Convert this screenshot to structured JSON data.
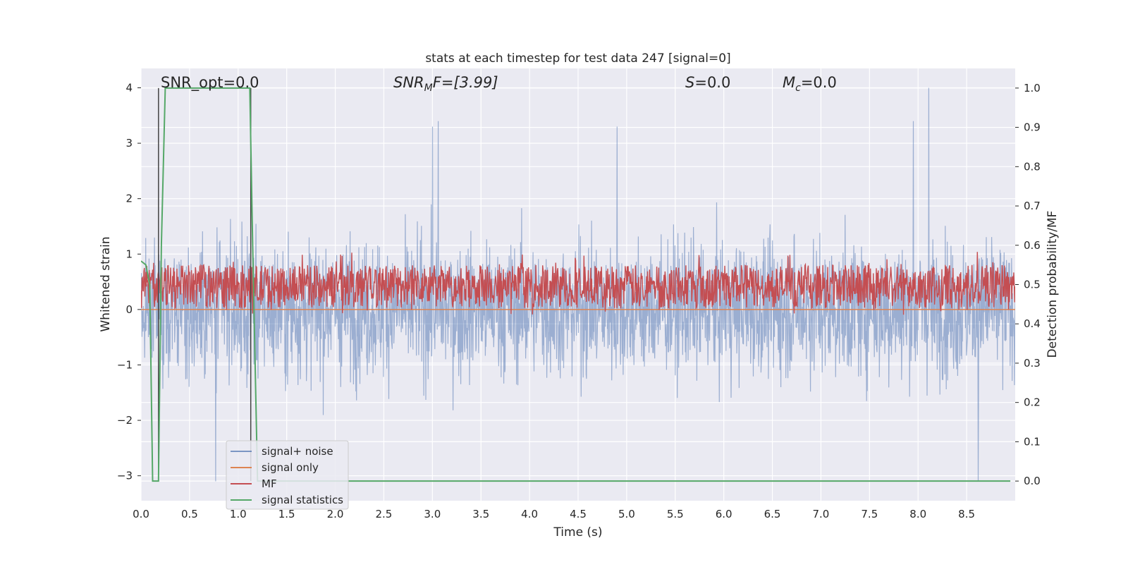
{
  "chart_data": {
    "type": "line",
    "title": "stats at each timestep for test data 247 [signal=0]",
    "xlabel": "Time (s)",
    "ylabel": "Whitened strain",
    "y2label": "Detection probability/MF",
    "xlim": [
      0.0,
      9.0
    ],
    "ylim": [
      -3.45,
      4.35
    ],
    "y2lim": [
      -0.05,
      1.05
    ],
    "xticks": [
      "0.0",
      "0.5",
      "1.0",
      "1.5",
      "2.0",
      "2.5",
      "3.0",
      "3.5",
      "4.0",
      "4.5",
      "5.0",
      "5.5",
      "6.0",
      "6.5",
      "7.0",
      "7.5",
      "8.0",
      "8.5"
    ],
    "yticks": [
      "4",
      "3",
      "2",
      "1",
      "0",
      "−1",
      "−2",
      "−3"
    ],
    "y2ticks": [
      "1.0",
      "0.9",
      "0.8",
      "0.7",
      "0.6",
      "0.5",
      "0.4",
      "0.3",
      "0.2",
      "0.1",
      "0.0"
    ],
    "grid": true,
    "legend_position": "lower-left",
    "annotations": {
      "snr_opt": "SNR_opt=0.0",
      "snr_mf_symbol": "SNR",
      "snr_mf_sub": "M",
      "snr_mf_rest": "F=[3.99]",
      "s_symbol": "S",
      "s_value": "=0.0",
      "mc_symbol": "M",
      "mc_sub": "c",
      "mc_value": "=0.0"
    },
    "vertical_markers_x": [
      0.18,
      1.13
    ],
    "series": [
      {
        "name": "signal+ noise",
        "color": "#4c72b0",
        "axis": "left",
        "description_range": [
          -3.1,
          4.0
        ],
        "notable_peaks": [
          [
            3.06,
            3.4
          ],
          [
            3.0,
            3.3
          ],
          [
            4.9,
            3.3
          ],
          [
            7.95,
            3.4
          ],
          [
            8.11,
            4.0
          ],
          [
            8.62,
            -3.1
          ],
          [
            0.77,
            -3.1
          ]
        ]
      },
      {
        "name": "signal only",
        "color": "#dd8452",
        "axis": "left",
        "x": [
          0.0,
          9.0
        ],
        "y": [
          0.0,
          0.0
        ]
      },
      {
        "name": "MF",
        "color": "#c44e52",
        "axis": "right",
        "band": [
          0.44,
          0.55
        ]
      },
      {
        "name": "signal statistics",
        "color": "#55a868",
        "axis": "right",
        "x": [
          0.0,
          0.05,
          0.09,
          0.12,
          0.18,
          0.21,
          0.25,
          0.5,
          1.0,
          1.12,
          1.15,
          1.2,
          1.3,
          2.0,
          4.0,
          6.0,
          8.0,
          8.95
        ],
        "y": [
          0.56,
          0.55,
          0.5,
          0.0,
          0.0,
          0.6,
          1.0,
          1.0,
          1.0,
          1.0,
          0.6,
          0.0,
          0.0,
          0.0,
          0.0,
          0.0,
          0.0,
          0.0
        ]
      }
    ],
    "legend": [
      "signal+ noise",
      "signal only",
      "MF",
      "signal statistics"
    ]
  }
}
